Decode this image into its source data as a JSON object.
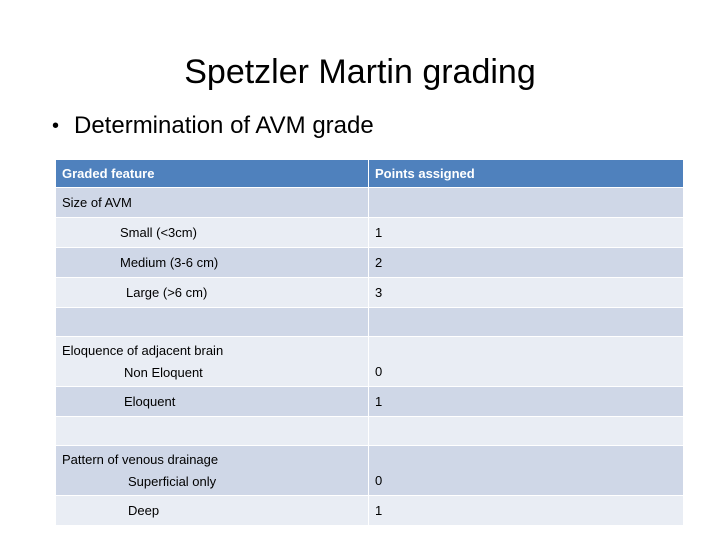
{
  "title": "Spetzler Martin grading",
  "bullet": "Determination of AVM grade",
  "table": {
    "headers": [
      "Graded feature",
      "Points assigned"
    ],
    "rows": [
      {
        "feature": "Size of AVM",
        "points": ""
      },
      {
        "feature": "Small  (<3cm)",
        "points": "1"
      },
      {
        "feature": "Medium (3-6 cm)",
        "points": "2"
      },
      {
        "feature": "Large (>6 cm)",
        "points": "3"
      },
      {
        "feature": "",
        "points": ""
      },
      {
        "feature_heading": "Eloquence of adjacent brain",
        "feature": "Non Eloquent",
        "points": "0"
      },
      {
        "feature": "Eloquent",
        "points": "1"
      },
      {
        "feature": "",
        "points": ""
      },
      {
        "feature_heading": "Pattern of venous drainage",
        "feature": "Superficial only",
        "points": "0"
      },
      {
        "feature": "Deep",
        "points": "1"
      }
    ]
  }
}
